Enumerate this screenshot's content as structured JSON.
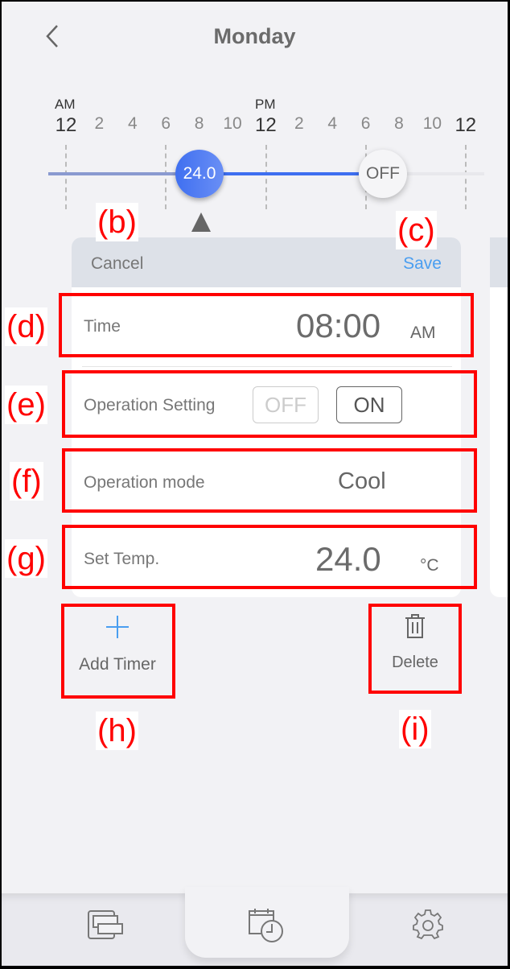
{
  "header": {
    "title": "Monday",
    "back_icon": "chevron-left-icon"
  },
  "timeline": {
    "am_label": "AM",
    "pm_label": "PM",
    "hours": [
      "12",
      "2",
      "4",
      "6",
      "8",
      "10",
      "12",
      "2",
      "4",
      "6",
      "8",
      "10",
      "12"
    ],
    "start_knob": {
      "value": "24.0",
      "time_hour": 8
    },
    "end_knob": {
      "value": "OFF",
      "time_hour": 19
    },
    "colors": {
      "active": "#3e6ff0"
    }
  },
  "editor": {
    "cancel": "Cancel",
    "save": "Save",
    "time": {
      "label": "Time",
      "value": "08:00",
      "suffix": "AM"
    },
    "operation_setting": {
      "label": "Operation Setting",
      "off": "OFF",
      "on": "ON",
      "selected": "ON"
    },
    "operation_mode": {
      "label": "Operation mode",
      "value": "Cool"
    },
    "set_temp": {
      "label": "Set Temp.",
      "value": "24.0",
      "unit": "°C"
    }
  },
  "actions": {
    "add_timer": "Add Timer",
    "delete": "Delete"
  },
  "annotations": [
    "(b)",
    "(c)",
    "(d)",
    "(e)",
    "(f)",
    "(g)",
    "(h)",
    "(i)"
  ],
  "bottom_nav": {
    "items": [
      "units-icon",
      "schedule-icon",
      "settings-icon"
    ],
    "active": "schedule-icon"
  }
}
